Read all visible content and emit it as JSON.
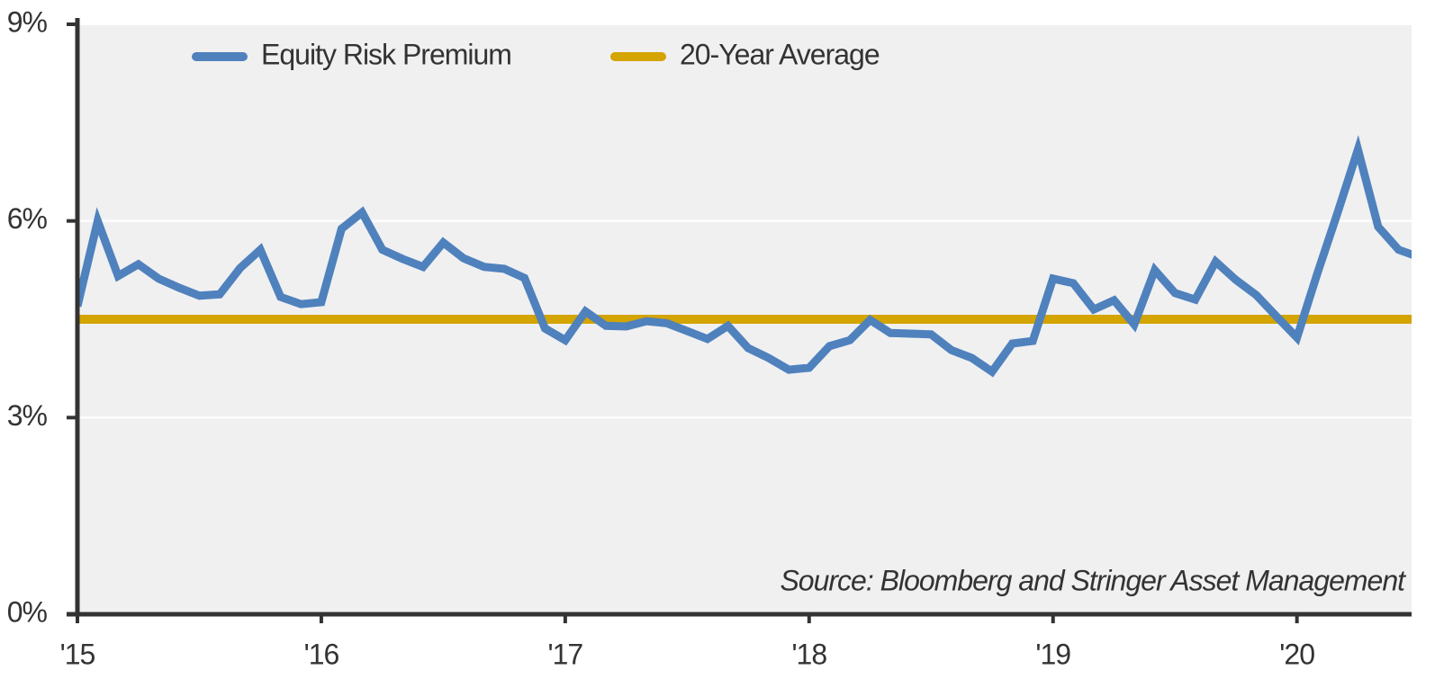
{
  "chart_data": {
    "type": "line",
    "annotation": "Source: Bloomberg and Stringer Asset Management",
    "x": [
      2015,
      2015.083,
      2015.167,
      2015.25,
      2015.333,
      2015.417,
      2015.5,
      2015.583,
      2015.667,
      2015.75,
      2015.833,
      2015.917,
      2016,
      2016.083,
      2016.167,
      2016.25,
      2016.333,
      2016.417,
      2016.5,
      2016.583,
      2016.667,
      2016.75,
      2016.833,
      2016.917,
      2017,
      2017.083,
      2017.167,
      2017.25,
      2017.333,
      2017.417,
      2017.5,
      2017.583,
      2017.667,
      2017.75,
      2017.833,
      2017.917,
      2018,
      2018.083,
      2018.167,
      2018.25,
      2018.333,
      2018.417,
      2018.5,
      2018.583,
      2018.667,
      2018.75,
      2018.833,
      2018.917,
      2019,
      2019.083,
      2019.167,
      2019.25,
      2019.333,
      2019.417,
      2019.5,
      2019.583,
      2019.667,
      2019.75,
      2019.833,
      2019.917,
      2020,
      2020.083,
      2020.167,
      2020.25,
      2020.333,
      2020.417,
      2020.5
    ],
    "series": [
      {
        "name": "Equity Risk Premium",
        "color": "#4f81bd",
        "values": [
          4.7,
          6.0,
          5.16,
          5.34,
          5.12,
          4.98,
          4.86,
          4.88,
          5.28,
          5.56,
          4.84,
          4.73,
          4.76,
          5.88,
          6.13,
          5.56,
          5.42,
          5.3,
          5.67,
          5.43,
          5.3,
          5.27,
          5.13,
          4.36,
          4.18,
          4.62,
          4.4,
          4.39,
          4.47,
          4.44,
          4.32,
          4.2,
          4.4,
          4.06,
          3.91,
          3.73,
          3.76,
          4.09,
          4.18,
          4.49,
          4.29,
          4.28,
          4.27,
          4.03,
          3.91,
          3.7,
          4.13,
          4.17,
          5.12,
          5.05,
          4.65,
          4.79,
          4.42,
          5.25,
          4.9,
          4.8,
          5.38,
          5.1,
          4.87,
          4.54,
          4.22,
          5.19,
          6.13,
          7.09,
          5.91,
          5.56,
          5.45
        ]
      }
    ],
    "reference_lines": [
      {
        "name": "20-Year Average",
        "color": "#d4a400",
        "value": 4.5
      }
    ],
    "xlim": [
      2015,
      2020.47
    ],
    "xticks": [
      {
        "value": 2015,
        "label": "'15"
      },
      {
        "value": 2016,
        "label": "'16"
      },
      {
        "value": 2017,
        "label": "'17"
      },
      {
        "value": 2018,
        "label": "'18"
      },
      {
        "value": 2019,
        "label": "'19"
      },
      {
        "value": 2020,
        "label": "'20"
      }
    ],
    "ylim": [
      0,
      9
    ],
    "yticks": [
      {
        "value": 0,
        "label": "0%"
      },
      {
        "value": 3,
        "label": "3%"
      },
      {
        "value": 6,
        "label": "6%"
      },
      {
        "value": 9,
        "label": "9%"
      }
    ],
    "grid": true,
    "legend": "top-left"
  }
}
